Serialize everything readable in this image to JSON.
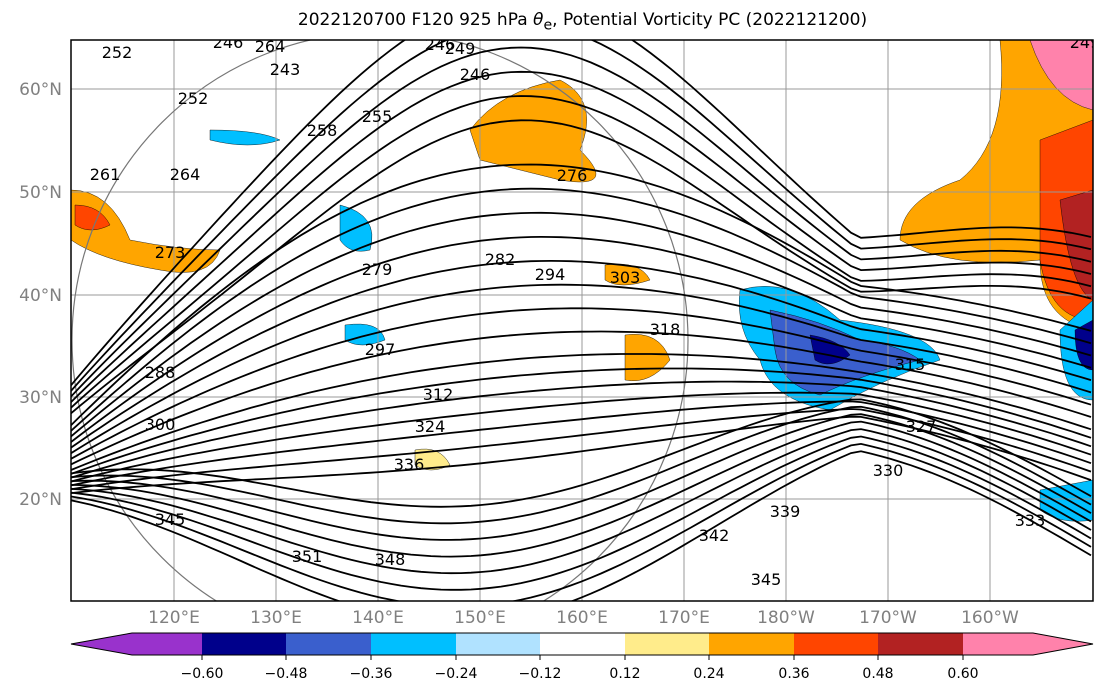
{
  "title": {
    "prefix": "2022120700 F120 925 hPa ",
    "theta": "θ",
    "sub": "e",
    "suffix": ", Potential Vorticity PC (2022121200)"
  },
  "lat_labels": [
    "60°N",
    "50°N",
    "40°N",
    "30°N",
    "20°N"
  ],
  "lon_labels": [
    "120°E",
    "130°E",
    "140°E",
    "150°E",
    "160°E",
    "170°E",
    "180°W",
    "170°W",
    "160°W"
  ],
  "colorbar": {
    "ticks": [
      "−0.60",
      "−0.48",
      "−0.36",
      "−0.24",
      "−0.12",
      "0.12",
      "0.24",
      "0.36",
      "0.48",
      "0.60"
    ],
    "colors": [
      "#9932cc",
      "#00008b",
      "#3a5fcd",
      "#00bfff",
      "#b0e2ff",
      "#ffffff",
      "#ffec8b",
      "#ffa500",
      "#ff4500",
      "#b22222",
      "#ff82ab"
    ]
  },
  "contour_labels": [
    "252",
    "246",
    "243",
    "249",
    "246",
    "252",
    "255",
    "258",
    "261",
    "264",
    "273",
    "279",
    "282",
    "294",
    "303",
    "318",
    "288",
    "297",
    "300",
    "312",
    "324",
    "336",
    "345",
    "351",
    "348",
    "342",
    "339",
    "345",
    "330",
    "327",
    "315",
    "333",
    "276",
    "246",
    "264",
    "249"
  ]
}
